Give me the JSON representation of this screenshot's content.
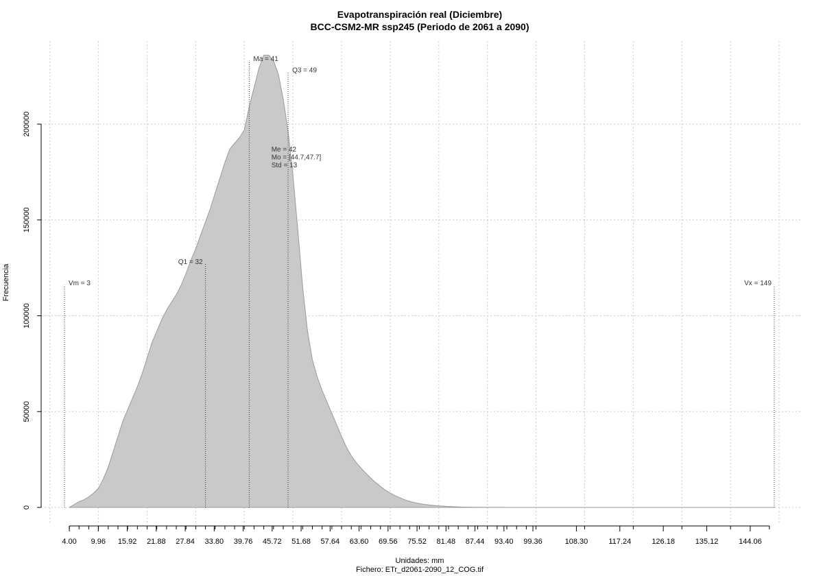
{
  "chart_data": {
    "type": "area",
    "title": "Evapotranspiración real (Diciembre)",
    "subtitle": "BCC-CSM2-MR ssp245 (Periodo de 2061 a 2090)",
    "xlabel": "Unidades: mm",
    "caption": "Fichero: ETr_d2061-2090_12_COG.tif",
    "ylabel": "Frecuencia",
    "xlim": [
      3,
      150
    ],
    "ylim": [
      0,
      230000
    ],
    "x_ticks": [
      {
        "v": 4.0,
        "label": "4.00"
      },
      {
        "v": 9.96,
        "label": "9.96"
      },
      {
        "v": 15.92,
        "label": "15.92"
      },
      {
        "v": 21.88,
        "label": "21.88"
      },
      {
        "v": 27.84,
        "label": "27.84"
      },
      {
        "v": 33.8,
        "label": "33.80"
      },
      {
        "v": 39.76,
        "label": "39.76"
      },
      {
        "v": 45.72,
        "label": "45.72"
      },
      {
        "v": 51.68,
        "label": "51.68"
      },
      {
        "v": 57.64,
        "label": "57.64"
      },
      {
        "v": 63.6,
        "label": "63.60"
      },
      {
        "v": 69.56,
        "label": "69.56"
      },
      {
        "v": 75.52,
        "label": "75.52"
      },
      {
        "v": 81.48,
        "label": "81.48"
      },
      {
        "v": 87.44,
        "label": "87.44"
      },
      {
        "v": 93.4,
        "label": "93.40"
      },
      {
        "v": 99.36,
        "label": "99.36"
      },
      {
        "v": 108.3,
        "label": "108.30"
      },
      {
        "v": 117.24,
        "label": "117.24"
      },
      {
        "v": 126.18,
        "label": "126.18"
      },
      {
        "v": 135.12,
        "label": "135.12"
      },
      {
        "v": 144.06,
        "label": "144.06"
      }
    ],
    "x_minor_ticks": [
      4,
      6,
      8,
      10,
      12,
      14,
      16,
      18,
      20,
      22,
      24,
      26,
      28,
      30,
      32,
      34,
      36,
      38,
      40,
      42,
      44,
      46,
      48,
      50,
      52,
      54,
      56,
      58,
      60,
      62,
      64,
      66,
      68,
      70,
      72,
      74,
      76,
      78,
      80,
      82,
      84,
      86,
      88,
      90,
      92,
      94,
      96,
      98,
      100,
      110,
      120,
      130,
      140,
      148
    ],
    "x_grid": [
      0,
      10,
      20,
      30,
      40,
      50,
      60,
      70,
      80,
      90,
      100,
      110,
      120,
      130,
      140,
      150
    ],
    "y_ticks": [
      {
        "v": 0,
        "label": "0"
      },
      {
        "v": 50000,
        "label": "50000"
      },
      {
        "v": 100000,
        "label": "100000"
      },
      {
        "v": 150000,
        "label": "150000"
      },
      {
        "v": 200000,
        "label": "200000"
      }
    ],
    "series": [
      {
        "x": [
          4,
          5,
          6,
          7,
          8,
          9,
          10,
          11,
          12,
          13,
          14,
          15,
          16,
          17,
          18,
          19,
          20,
          21,
          22,
          23,
          24,
          25,
          26,
          27,
          28,
          29,
          30,
          31,
          32,
          33,
          34,
          35,
          36,
          37,
          38,
          39,
          40,
          41,
          42,
          43,
          44,
          45,
          46,
          47,
          48,
          49,
          50,
          51,
          52,
          53,
          54,
          55,
          56,
          57,
          58,
          59,
          60,
          61,
          62,
          63,
          64,
          65,
          66,
          67,
          68,
          69,
          70,
          71,
          72,
          73,
          74,
          75,
          76,
          77,
          78,
          80,
          82,
          84,
          86,
          88,
          90,
          93,
          96,
          100,
          110,
          120,
          130,
          140,
          149
        ],
        "values": [
          0,
          1500,
          3000,
          4000,
          5500,
          7500,
          10000,
          15000,
          21000,
          29000,
          37000,
          45000,
          51000,
          57000,
          63000,
          70000,
          78000,
          86000,
          92000,
          98000,
          103000,
          107000,
          111000,
          116000,
          122000,
          129000,
          135000,
          142000,
          149000,
          156000,
          164000,
          172000,
          180000,
          187000,
          190000,
          193000,
          197000,
          209000,
          219000,
          229000,
          236000,
          236000,
          233000,
          226000,
          213000,
          196000,
          173000,
          145000,
          115000,
          92000,
          77000,
          68000,
          61000,
          55000,
          49000,
          43000,
          37000,
          31500,
          27000,
          23500,
          20500,
          17800,
          15300,
          13000,
          11000,
          9000,
          7500,
          6200,
          5000,
          4000,
          3200,
          2500,
          2000,
          1600,
          1300,
          800,
          500,
          300,
          150,
          80,
          40,
          20,
          10,
          5,
          2,
          1,
          0,
          0,
          0
        ],
        "color": "#c9c9c9",
        "line_color": "#9a9a9a"
      }
    ],
    "stat_lines": [
      {
        "label": "Vm = 3",
        "x": 3,
        "y": 116000,
        "label_side": "right"
      },
      {
        "label": "Q1 = 32",
        "x": 32,
        "y": 127000,
        "label_side": "left"
      },
      {
        "label": "Ma = 41",
        "x": 41,
        "y": 233000,
        "label_side": "right"
      },
      {
        "label": "Q3 = 49",
        "x": 49,
        "y": 227000,
        "label_side": "right"
      },
      {
        "label": "Vx = 149",
        "x": 149,
        "y": 116000,
        "label_side": "left"
      }
    ],
    "stats_block": [
      "Me = 42",
      "Mo = [44.7,47.7]",
      "Std = 13"
    ],
    "stats_block_anchor": {
      "x": 45,
      "y": 191000
    },
    "grid": true
  }
}
